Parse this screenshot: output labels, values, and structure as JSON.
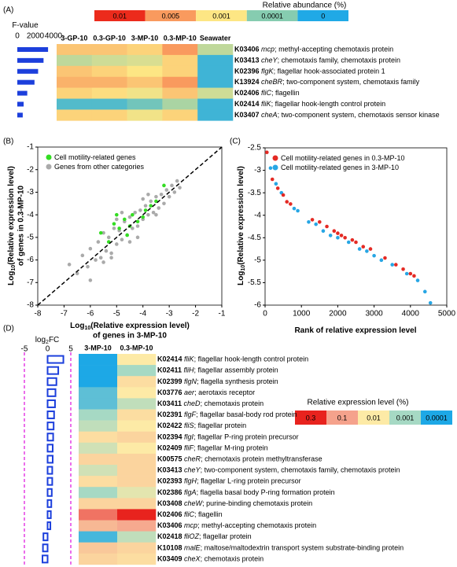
{
  "chart_data": [
    {
      "type": "heatmap",
      "panel": "(A)",
      "legend_title": "Relative abundance (%)",
      "legend": [
        {
          "value": 0.01,
          "color": "#ec2b1c"
        },
        {
          "value": 0.005,
          "color": "#f99a5e"
        },
        {
          "value": 0.001,
          "color": "#fde684"
        },
        {
          "value": 0.0001,
          "color": "#86ccb0"
        },
        {
          "value": 0,
          "color": "#20a9e6"
        }
      ],
      "columns": [
        "3-GP-10",
        "0.3-GP-10",
        "3-MP-10",
        "0.3-MP-10",
        "Seawater"
      ],
      "rows": [
        {
          "id": "K03406",
          "gene": "mcp",
          "description": "; methyl-accepting chemotaxis protein"
        },
        {
          "id": "K03413",
          "gene": "cheY",
          "description": "; chemotaxis family, chemotaxis protein"
        },
        {
          "id": "K02396",
          "gene": "flgK",
          "description": "; flagellar hook-associated protein 1"
        },
        {
          "id": "K13924",
          "gene": "cheBR",
          "description": "; two-component system, chemotaxis family"
        },
        {
          "id": "K02406",
          "gene": "fliC",
          "description": "; flagellin"
        },
        {
          "id": "K02414",
          "gene": "fliK",
          "description": "; flagellar hook-length control protein"
        },
        {
          "id": "K03407",
          "gene": "cheA",
          "description": "; two-component system, chemotaxis sensor kinase"
        }
      ],
      "values": [
        [
          0.002,
          0.002,
          0.0015,
          0.005,
          0.0003
        ],
        [
          0.0003,
          0.0004,
          0.0005,
          0.0015,
          3e-05
        ],
        [
          0.002,
          0.0015,
          0.001,
          0.0015,
          3e-05
        ],
        [
          0.003,
          0.003,
          0.002,
          0.005,
          3e-05
        ],
        [
          0.0015,
          0.0012,
          0.0008,
          0.002,
          0.0004
        ],
        [
          5e-05,
          5e-05,
          8e-05,
          0.0002,
          3e-05
        ],
        [
          0.0015,
          0.0015,
          0.0008,
          0.0015,
          3e-05
        ]
      ],
      "bar": {
        "title": {
          "prefix": "F-value"
        },
        "xlim": [
          0,
          4000
        ],
        "xticks": [
          0,
          2000,
          4000
        ],
        "values": [
          3400,
          2900,
          2300,
          1900,
          1100,
          700,
          600
        ],
        "color": "#1c3fdc",
        "filled": true
      }
    },
    {
      "type": "scatter",
      "panel": "(B)",
      "diagonal": true,
      "xlim": [
        -8,
        -1
      ],
      "xticks": [
        -8,
        -7,
        -6,
        -5,
        -4,
        -3,
        -2,
        -1
      ],
      "ylim": [
        -8,
        -1
      ],
      "yticks": [
        -8,
        -7,
        -6,
        -5,
        -4,
        -3,
        -2,
        -1
      ],
      "xlabel": {
        "prefix": "Log",
        "sub": "10",
        "suffix": "(Relative expression level)",
        "line2": "of genes in 3-MP-10"
      },
      "ylabel": {
        "prefix": "Log",
        "sub": "10",
        "suffix": "(Relative expression level)",
        "line2": "of genes in 0.3-MP-10"
      },
      "series": [
        {
          "name": "Cell motility-related genes",
          "color": "#33dd22",
          "x": [
            -5.6,
            -5.3,
            -5.1,
            -4.9,
            -4.7,
            -4.5,
            -4.4,
            -4.2,
            -4.0,
            -3.9,
            -3.7,
            -3.5,
            -3.2,
            -4.6,
            -5.0
          ],
          "values": [
            -4.8,
            -5.2,
            -4.4,
            -4.6,
            -4.2,
            -4.5,
            -4.0,
            -4.3,
            -4.1,
            -3.8,
            -3.6,
            -3.4,
            -2.7,
            -4.9,
            -4.0
          ]
        },
        {
          "name": "Genes from other categories",
          "color": "#aaaaaa",
          "x": [
            -6.8,
            -6.5,
            -6.3,
            -6.1,
            -6.0,
            -5.8,
            -5.7,
            -5.6,
            -5.5,
            -5.4,
            -5.3,
            -5.2,
            -5.1,
            -5.0,
            -4.9,
            -4.8,
            -4.7,
            -4.6,
            -4.5,
            -4.4,
            -4.3,
            -4.2,
            -4.1,
            -4.0,
            -3.9,
            -3.8,
            -3.7,
            -3.6,
            -3.5,
            -3.4,
            -3.3,
            -3.2,
            -3.1,
            -3.0,
            -2.9,
            -2.8,
            -2.7,
            -2.6,
            -5.5,
            -5.0,
            -4.5,
            -4.0,
            -3.5,
            -6.0,
            -5.2,
            -4.8,
            -4.2,
            -3.8
          ],
          "values": [
            -6.2,
            -6.6,
            -5.8,
            -6.3,
            -5.5,
            -6.0,
            -5.2,
            -5.9,
            -4.8,
            -5.6,
            -5.0,
            -5.7,
            -4.6,
            -5.3,
            -4.7,
            -5.1,
            -4.3,
            -4.9,
            -4.1,
            -4.6,
            -3.9,
            -4.5,
            -3.8,
            -4.2,
            -3.6,
            -4.0,
            -3.4,
            -3.9,
            -3.2,
            -3.7,
            -3.1,
            -3.5,
            -2.9,
            -3.2,
            -2.7,
            -3.0,
            -2.5,
            -2.8,
            -6.1,
            -4.2,
            -5.2,
            -3.3,
            -4.0,
            -6.9,
            -5.9,
            -3.9,
            -5.0,
            -3.1
          ]
        }
      ]
    },
    {
      "type": "scatter",
      "panel": "(C)",
      "diagonal": false,
      "xlim": [
        0,
        5000
      ],
      "xticks": [
        0,
        1000,
        2000,
        3000,
        4000,
        5000
      ],
      "ylim": [
        -6,
        -2.5
      ],
      "yticks": [
        -6,
        -5.5,
        -5,
        -4.5,
        -4,
        -3.5,
        -3,
        -2.5
      ],
      "xlabel": {
        "prefix": "Rank of relative expression level"
      },
      "ylabel": {
        "prefix": "Log",
        "sub": "10",
        "suffix": "(Relative expression level)"
      },
      "series": [
        {
          "name": "Cell motility-related genes in 0.3-MP-10",
          "color": "#e42a24",
          "x": [
            50,
            200,
            350,
            500,
            600,
            700,
            1300,
            1500,
            1700,
            1900,
            2000,
            2100,
            2200,
            2400,
            2500,
            2700,
            2900,
            3300,
            3600,
            3800,
            4000,
            4100
          ],
          "values": [
            -2.6,
            -3.2,
            -3.4,
            -3.55,
            -3.7,
            -3.75,
            -4.1,
            -4.15,
            -4.25,
            -4.35,
            -4.4,
            -4.45,
            -4.5,
            -4.55,
            -4.6,
            -4.7,
            -4.75,
            -4.95,
            -5.1,
            -5.2,
            -5.3,
            -5.35
          ]
        },
        {
          "name": "Cell motility-related genes in 3-MP-10",
          "color": "#27a6e4",
          "x": [
            150,
            300,
            450,
            800,
            900,
            1200,
            1400,
            1600,
            1800,
            2000,
            2300,
            2600,
            2800,
            3000,
            3200,
            3500,
            3900,
            4200,
            4400,
            4550
          ],
          "values": [
            -2.95,
            -3.3,
            -3.5,
            -3.85,
            -3.9,
            -4.15,
            -4.2,
            -4.35,
            -4.45,
            -4.5,
            -4.6,
            -4.75,
            -4.8,
            -4.9,
            -5.0,
            -5.1,
            -5.3,
            -5.45,
            -5.7,
            -5.95
          ]
        }
      ]
    },
    {
      "type": "heatmap",
      "panel": "(D)",
      "legend_title": "Relative expression level (%)",
      "legend": [
        {
          "value": 0.3,
          "color": "#e8231e"
        },
        {
          "value": 0.1,
          "color": "#f5a28c"
        },
        {
          "value": 0.01,
          "color": "#fdeaa6"
        },
        {
          "value": 0.001,
          "color": "#a6d9c4"
        },
        {
          "value": 0.0001,
          "color": "#1da8e6"
        }
      ],
      "columns": [
        "3-MP-10",
        "0.3-MP-10"
      ],
      "rows": [
        {
          "id": "K02414",
          "gene": "fliK",
          "description": "; flagellar hook-length control protein"
        },
        {
          "id": "K02411",
          "gene": "fliH",
          "description": "; flagellar assembly protein"
        },
        {
          "id": "K02399",
          "gene": "flgN",
          "description": "; flagella synthesis protein"
        },
        {
          "id": "K03776",
          "gene": "aer",
          "description": "; aerotaxis receptor"
        },
        {
          "id": "K03411",
          "gene": "cheD",
          "description": "; chemotaxis protein"
        },
        {
          "id": "K02391",
          "gene": "flgF",
          "description": "; flagellar basal-body rod protein"
        },
        {
          "id": "K02422",
          "gene": "fliS",
          "description": "; flagellar protein"
        },
        {
          "id": "K02394",
          "gene": "flgI",
          "description": "; flagellar P-ring protein precursor"
        },
        {
          "id": "K02409",
          "gene": "fliF",
          "description": "; flagellar M-ring protein"
        },
        {
          "id": "K00575",
          "gene": "cheR",
          "description": "; chemotaxis protein methyltransferase"
        },
        {
          "id": "K03413",
          "gene": "cheY",
          "description": "; two-component system, chemotaxis family, chemotaxis protein"
        },
        {
          "id": "K02393",
          "gene": "flgH",
          "description": "; flagellar L-ring protein precursor"
        },
        {
          "id": "K02386",
          "gene": "flgA",
          "description": "; flagella basal body P-ring formation protein"
        },
        {
          "id": "K03408",
          "gene": "cheW",
          "description": "; purine-binding chemotaxis protein"
        },
        {
          "id": "K02406",
          "gene": "fliC",
          "description": "; flagellin"
        },
        {
          "id": "K03406",
          "gene": "mcp",
          "description": "; methyl-accepting chemotaxis protein"
        },
        {
          "id": "K02418",
          "gene": "fliOZ",
          "description": "; flagellar protein"
        },
        {
          "id": "K10108",
          "gene": "malE",
          "description": "; maltose/maltodextrin transport system substrate-binding protein"
        },
        {
          "id": "K03409",
          "gene": "cheX",
          "description": "; chemotaxis protein"
        }
      ],
      "values": [
        [
          0.0001,
          0.01
        ],
        [
          0.0001,
          0.001
        ],
        [
          0.0001,
          0.015
        ],
        [
          0.0003,
          0.01
        ],
        [
          0.0003,
          0.002
        ],
        [
          0.001,
          0.015
        ],
        [
          0.002,
          0.01
        ],
        [
          0.015,
          0.02
        ],
        [
          0.003,
          0.01
        ],
        [
          0.02,
          0.02
        ],
        [
          0.003,
          0.02
        ],
        [
          0.015,
          0.02
        ],
        [
          0.001,
          0.005
        ],
        [
          0.02,
          0.02
        ],
        [
          0.15,
          0.3
        ],
        [
          0.05,
          0.08
        ],
        [
          0.0002,
          0.002
        ],
        [
          0.03,
          0.02
        ],
        [
          0.02,
          0.015
        ]
      ],
      "bar": {
        "title": {
          "prefix": "log",
          "sub": "2",
          "suffix": "FC"
        },
        "xlim": [
          -5,
          5
        ],
        "xticks": [
          -5,
          0,
          5
        ],
        "values": [
          3.4,
          2.3,
          1.9,
          1.7,
          1.6,
          1.4,
          1.3,
          1.2,
          1.1,
          1.1,
          1.0,
          1.0,
          0.9,
          0.8,
          0.7,
          0.6,
          -0.9,
          -1.0,
          -1.1
        ],
        "color": "#1c3fdc",
        "filled": false
      }
    }
  ]
}
